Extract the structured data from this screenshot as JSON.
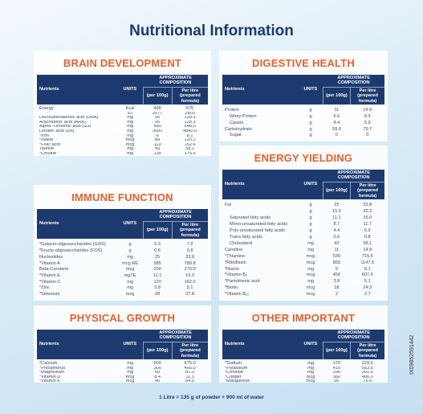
{
  "title": "Nutritional Information",
  "sections": [
    {
      "heading": "BRAIN DEVELOPMENT",
      "header": {
        "nutrients": "Nutrients",
        "units": "UNITS",
        "composition": "APPROXIMATE COMPOSITION",
        "per100": "(per 100g)",
        "perLitre": "Per litre (prepared formula)"
      },
      "rows": [
        [
          "Energy",
          "Kcal",
          "496",
          "670"
        ],
        [
          null,
          "kJ",
          "2077",
          "2803"
        ],
        [
          "Docosahexaenoic acid (DHA)",
          "mg",
          "95",
          "128.3"
        ],
        [
          "Arachidonic acid (ARA)",
          "mg",
          "95",
          "128.3"
        ],
        [
          "Alpha -Linolenic acid (ω3)",
          "mg",
          "480",
          "648.0"
        ],
        [
          "Linoleic acid (ω6)",
          "mg",
          "3600",
          "4860.0"
        ],
        [
          "*Iron",
          "mg",
          "6",
          "8.1"
        ],
        [
          "*Iodine",
          "mcg",
          "89",
          "120.2"
        ],
        [
          "*Folic acid",
          "mcg",
          "113",
          "152.6"
        ],
        [
          "Taurine",
          "mg",
          "43",
          "58.1"
        ],
        [
          "*Choline",
          "mg",
          "130",
          "175.5"
        ]
      ]
    },
    {
      "heading": "IMMUNE FUNCTION",
      "header": {
        "nutrients": "Nutrients",
        "units": "UNITS",
        "composition": "APPROXIMATE COMPOSITION",
        "per100": "(per 100g)",
        "perLitre": "Per litre (prepared formula)"
      },
      "rows": [
        [
          "*Galacto-oligosaccharides (GOS)",
          "g",
          "5.3",
          "7.2"
        ],
        [
          "*Fructo-oligosaccharides (FOS)",
          "g",
          "0.6",
          "0.8"
        ],
        [
          "Nucleotides",
          "mg",
          "25",
          "33.8"
        ],
        [
          "*Vitamin A",
          "mcg RE",
          "585",
          "789.8"
        ],
        [
          "Beta-Carotene",
          "mcg",
          "200",
          "270.0"
        ],
        [
          "*Vitamin E",
          "mgTE",
          "11.1",
          "15.0"
        ],
        [
          "*Vitamin C",
          "mg",
          "120",
          "162.0"
        ],
        [
          "*Zinc",
          "mg",
          "3.8",
          "5.1"
        ],
        [
          "*Selenium",
          "mcg",
          "28",
          "37.8"
        ]
      ]
    },
    {
      "heading": "PHYSICAL GROWTH",
      "header": {
        "nutrients": "Nutrients",
        "units": "UNITS",
        "composition": "APPROXIMATE COMPOSITION",
        "per100": "(per 100g)",
        "perLitre": "Per litre (prepared formula)"
      },
      "rows": [
        [
          "*Calcium",
          "mg",
          "500",
          "675.0"
        ],
        [
          "*Phosphorus",
          "mg",
          "300",
          "405.0"
        ],
        [
          "*Magnesium",
          "mg",
          "60",
          "81.0"
        ],
        [
          "*Vitamin D",
          "mcg",
          "8.4",
          "11.3"
        ],
        [
          "*Vitamin K",
          "mcg",
          "40",
          "54.0"
        ]
      ]
    },
    {
      "heading": "DIGESTIVE HEALTH",
      "header": {
        "nutrients": "Nutrients",
        "units": "UNITS",
        "composition": "APPROXIMATE COMPOSITION",
        "per100": "(per 100g)",
        "perLitre": "Per litre (prepared formula)"
      },
      "rows": [
        [
          "Protein",
          "g",
          "11",
          "14.9"
        ],
        [
          "Whey Protein",
          "g",
          "6.6",
          "8.9"
        ],
        [
          "Casein",
          "g",
          "4.4",
          "5.9"
        ],
        [
          "Carbohydrate",
          "g",
          "59.0",
          "79.7"
        ],
        [
          "Sugar",
          "g",
          "0",
          "0"
        ]
      ]
    },
    {
      "heading": "ENERGY YIELDING NUTRIENTS",
      "header": {
        "nutrients": "Nutrients",
        "units": "UNITS",
        "composition": "APPROXIMATE COMPOSITION",
        "per100": "(per 100g)",
        "perLitre": "Per litre (prepared formula)"
      },
      "rows": [
        [
          "Fat",
          "g",
          "25",
          "33.8"
        ],
        [
          null,
          "g",
          "15.0",
          "20.3"
        ],
        [
          "Saturated fatty acids",
          "g",
          "11.1",
          "15.0"
        ],
        [
          "Mono-unsaturated fatty acids",
          "g",
          "8.7",
          "11.7"
        ],
        [
          "Poly-unsaturated fatty acids",
          "g",
          "4.4",
          "5.9"
        ],
        [
          "Trans fatty acids",
          "g",
          "0.6",
          "0.8"
        ],
        [
          "Cholesterol",
          "mg",
          "43",
          "58.1"
        ],
        [
          "Carnitine",
          "mg",
          "11",
          "14.9"
        ],
        [
          "*Thiamine",
          "mcg",
          "530",
          "715.5"
        ],
        [
          "*Riboflavin",
          "mcg",
          "850",
          "1147.5"
        ],
        [
          "*Niacin",
          "mg",
          "6",
          "8.1"
        ],
        [
          "*Vitamin B₆",
          "mcg",
          "450",
          "607.5"
        ],
        [
          "*Pantothenic acid",
          "mg",
          "3.8",
          "5.1"
        ],
        [
          "*Biotin",
          "mcg",
          "18",
          "24.3"
        ],
        [
          "*Vitamin B₁₂",
          "mcg",
          "2",
          "2.7"
        ]
      ]
    },
    {
      "heading": "OTHER IMPORTANT NUTRIENTS",
      "header": {
        "nutrients": "Nutrients",
        "units": "UNITS",
        "composition": "APPROXIMATE COMPOSITION",
        "per100": "(per 100g)",
        "perLitre": "Per litre (prepared formula)"
      },
      "rows": [
        [
          "*Sodium",
          "mg",
          "170",
          "229.5"
        ],
        [
          "*Potassium",
          "mg",
          "410",
          "553.5"
        ],
        [
          "*Chloride",
          "mg",
          "290",
          "391.5"
        ],
        [
          "*Copper",
          "mcg",
          "360",
          "486.0"
        ],
        [
          "*Manganese",
          "mcg",
          "56",
          "75.6"
        ]
      ]
    }
  ],
  "footer": "1 Litre = 135 g of powder + 900 ml of water",
  "code": "IX09852591442"
}
